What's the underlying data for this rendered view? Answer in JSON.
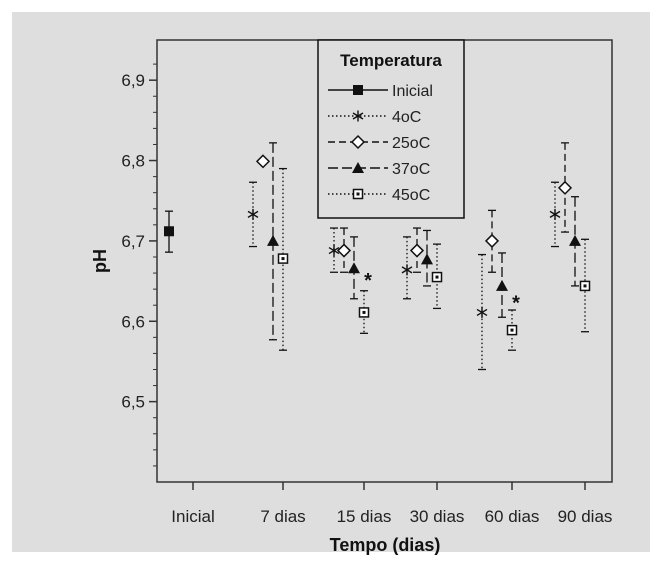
{
  "chart_data": {
    "type": "errorbar",
    "xlabel": "Tempo (dias)",
    "ylabel": "pH",
    "categories": [
      "Inicial",
      "7 dias",
      "15 dias",
      "30 dias",
      "60 dias",
      "90 dias"
    ],
    "ylim": [
      6.4,
      6.95
    ],
    "yticks": [
      "6,5",
      "6,6",
      "6,7",
      "6,8",
      "6,9"
    ],
    "ytick_values": [
      6.5,
      6.6,
      6.7,
      6.8,
      6.9
    ],
    "legend": {
      "title": "Temperatura",
      "placement": "top-center"
    },
    "series": [
      {
        "name": "Inicial",
        "marker": "square-filled",
        "line": "solid",
        "points": [
          {
            "x": "Inicial",
            "y": 6.712,
            "low": 6.686,
            "high": 6.737
          }
        ]
      },
      {
        "name": "4oC",
        "marker": "asterisk",
        "line": "dotted",
        "points": [
          {
            "x": "7 dias",
            "y": 6.733,
            "low": 6.693,
            "high": 6.773
          },
          {
            "x": "15 dias",
            "y": 6.688,
            "low": 6.661,
            "high": 6.716
          },
          {
            "x": "30 dias",
            "y": 6.664,
            "low": 6.628,
            "high": 6.705
          },
          {
            "x": "60 dias",
            "y": 6.611,
            "low": 6.54,
            "high": 6.683
          },
          {
            "x": "90 dias",
            "y": 6.733,
            "low": 6.693,
            "high": 6.773
          }
        ]
      },
      {
        "name": "25oC",
        "marker": "diamond-open",
        "line": "dashed",
        "points": [
          {
            "x": "7 dias",
            "y": 6.799,
            "low": 6.799,
            "high": 6.799
          },
          {
            "x": "15 dias",
            "y": 6.688,
            "low": 6.661,
            "high": 6.716
          },
          {
            "x": "30 dias",
            "y": 6.688,
            "low": 6.661,
            "high": 6.716
          },
          {
            "x": "60 dias",
            "y": 6.7,
            "low": 6.661,
            "high": 6.738
          },
          {
            "x": "90 dias",
            "y": 6.766,
            "low": 6.711,
            "high": 6.822
          }
        ]
      },
      {
        "name": "37oC",
        "marker": "triangle-filled",
        "line": "long-dash",
        "points": [
          {
            "x": "7 dias",
            "y": 6.7,
            "low": 6.577,
            "high": 6.822
          },
          {
            "x": "15 dias",
            "y": 6.666,
            "low": 6.628,
            "high": 6.705
          },
          {
            "x": "30 dias",
            "y": 6.677,
            "low": 6.644,
            "high": 6.713
          },
          {
            "x": "60 dias",
            "y": 6.644,
            "low": 6.605,
            "high": 6.685
          },
          {
            "x": "90 dias",
            "y": 6.7,
            "low": 6.644,
            "high": 6.755
          }
        ]
      },
      {
        "name": "45oC",
        "marker": "square-open",
        "line": "dotted",
        "points": [
          {
            "x": "7 dias",
            "y": 6.678,
            "low": 6.564,
            "high": 6.79
          },
          {
            "x": "15 dias",
            "y": 6.611,
            "low": 6.585,
            "high": 6.638
          },
          {
            "x": "30 dias",
            "y": 6.655,
            "low": 6.616,
            "high": 6.696
          },
          {
            "x": "60 dias",
            "y": 6.589,
            "low": 6.564,
            "high": 6.614
          },
          {
            "x": "90 dias",
            "y": 6.644,
            "low": 6.587,
            "high": 6.702
          }
        ]
      }
    ],
    "annotations": [
      {
        "text": "*",
        "x": "15 dias",
        "y": 6.655
      },
      {
        "text": "*",
        "x": "60 dias",
        "y": 6.627
      }
    ]
  }
}
